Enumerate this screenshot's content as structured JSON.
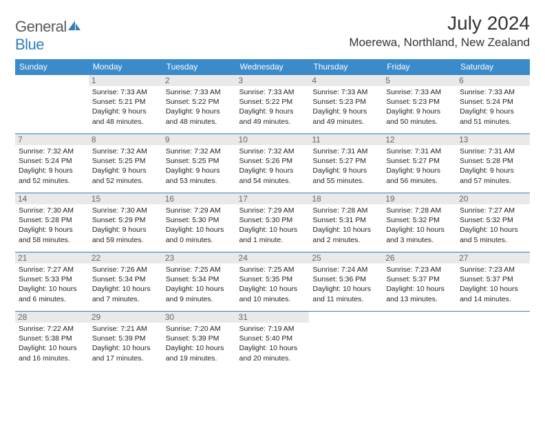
{
  "logo": {
    "text1": "General",
    "text2": "Blue"
  },
  "title": "July 2024",
  "location": "Moerewa, Northland, New Zealand",
  "colors": {
    "header_bg": "#3b8bcb",
    "border": "#2f7fbf",
    "daynum_bg": "#e9e9e9",
    "text": "#222222",
    "title_text": "#333333"
  },
  "weekdays": [
    "Sunday",
    "Monday",
    "Tuesday",
    "Wednesday",
    "Thursday",
    "Friday",
    "Saturday"
  ],
  "weeks": [
    [
      null,
      {
        "d": "1",
        "sr": "7:33 AM",
        "ss": "5:21 PM",
        "dl": "9 hours and 48 minutes."
      },
      {
        "d": "2",
        "sr": "7:33 AM",
        "ss": "5:22 PM",
        "dl": "9 hours and 48 minutes."
      },
      {
        "d": "3",
        "sr": "7:33 AM",
        "ss": "5:22 PM",
        "dl": "9 hours and 49 minutes."
      },
      {
        "d": "4",
        "sr": "7:33 AM",
        "ss": "5:23 PM",
        "dl": "9 hours and 49 minutes."
      },
      {
        "d": "5",
        "sr": "7:33 AM",
        "ss": "5:23 PM",
        "dl": "9 hours and 50 minutes."
      },
      {
        "d": "6",
        "sr": "7:33 AM",
        "ss": "5:24 PM",
        "dl": "9 hours and 51 minutes."
      }
    ],
    [
      {
        "d": "7",
        "sr": "7:32 AM",
        "ss": "5:24 PM",
        "dl": "9 hours and 52 minutes."
      },
      {
        "d": "8",
        "sr": "7:32 AM",
        "ss": "5:25 PM",
        "dl": "9 hours and 52 minutes."
      },
      {
        "d": "9",
        "sr": "7:32 AM",
        "ss": "5:25 PM",
        "dl": "9 hours and 53 minutes."
      },
      {
        "d": "10",
        "sr": "7:32 AM",
        "ss": "5:26 PM",
        "dl": "9 hours and 54 minutes."
      },
      {
        "d": "11",
        "sr": "7:31 AM",
        "ss": "5:27 PM",
        "dl": "9 hours and 55 minutes."
      },
      {
        "d": "12",
        "sr": "7:31 AM",
        "ss": "5:27 PM",
        "dl": "9 hours and 56 minutes."
      },
      {
        "d": "13",
        "sr": "7:31 AM",
        "ss": "5:28 PM",
        "dl": "9 hours and 57 minutes."
      }
    ],
    [
      {
        "d": "14",
        "sr": "7:30 AM",
        "ss": "5:28 PM",
        "dl": "9 hours and 58 minutes."
      },
      {
        "d": "15",
        "sr": "7:30 AM",
        "ss": "5:29 PM",
        "dl": "9 hours and 59 minutes."
      },
      {
        "d": "16",
        "sr": "7:29 AM",
        "ss": "5:30 PM",
        "dl": "10 hours and 0 minutes."
      },
      {
        "d": "17",
        "sr": "7:29 AM",
        "ss": "5:30 PM",
        "dl": "10 hours and 1 minute."
      },
      {
        "d": "18",
        "sr": "7:28 AM",
        "ss": "5:31 PM",
        "dl": "10 hours and 2 minutes."
      },
      {
        "d": "19",
        "sr": "7:28 AM",
        "ss": "5:32 PM",
        "dl": "10 hours and 3 minutes."
      },
      {
        "d": "20",
        "sr": "7:27 AM",
        "ss": "5:32 PM",
        "dl": "10 hours and 5 minutes."
      }
    ],
    [
      {
        "d": "21",
        "sr": "7:27 AM",
        "ss": "5:33 PM",
        "dl": "10 hours and 6 minutes."
      },
      {
        "d": "22",
        "sr": "7:26 AM",
        "ss": "5:34 PM",
        "dl": "10 hours and 7 minutes."
      },
      {
        "d": "23",
        "sr": "7:25 AM",
        "ss": "5:34 PM",
        "dl": "10 hours and 9 minutes."
      },
      {
        "d": "24",
        "sr": "7:25 AM",
        "ss": "5:35 PM",
        "dl": "10 hours and 10 minutes."
      },
      {
        "d": "25",
        "sr": "7:24 AM",
        "ss": "5:36 PM",
        "dl": "10 hours and 11 minutes."
      },
      {
        "d": "26",
        "sr": "7:23 AM",
        "ss": "5:37 PM",
        "dl": "10 hours and 13 minutes."
      },
      {
        "d": "27",
        "sr": "7:23 AM",
        "ss": "5:37 PM",
        "dl": "10 hours and 14 minutes."
      }
    ],
    [
      {
        "d": "28",
        "sr": "7:22 AM",
        "ss": "5:38 PM",
        "dl": "10 hours and 16 minutes."
      },
      {
        "d": "29",
        "sr": "7:21 AM",
        "ss": "5:39 PM",
        "dl": "10 hours and 17 minutes."
      },
      {
        "d": "30",
        "sr": "7:20 AM",
        "ss": "5:39 PM",
        "dl": "10 hours and 19 minutes."
      },
      {
        "d": "31",
        "sr": "7:19 AM",
        "ss": "5:40 PM",
        "dl": "10 hours and 20 minutes."
      },
      null,
      null,
      null
    ]
  ]
}
